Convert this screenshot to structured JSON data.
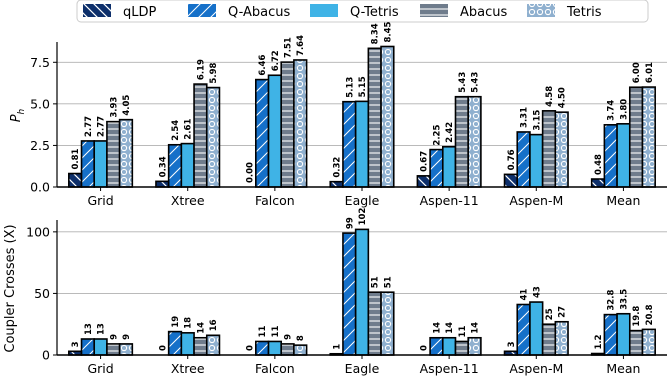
{
  "colors": {
    "qLDP": "#0d2f6b",
    "Q-Abacus": "#1570c9",
    "Q-Tetris": "#3fb3e6",
    "Abacus": "#6f7c8c",
    "Tetris": "#8fb0cf"
  },
  "legend": {
    "items": [
      {
        "name": "qLDP",
        "pattern": "backslash"
      },
      {
        "name": "Q-Abacus",
        "pattern": "slash"
      },
      {
        "name": "Q-Tetris",
        "pattern": "none"
      },
      {
        "name": "Abacus",
        "pattern": "hlines"
      },
      {
        "name": "Tetris",
        "pattern": "circles"
      }
    ]
  },
  "chart_data": [
    {
      "type": "bar",
      "categories": [
        "Grid",
        "Xtree",
        "Falcon",
        "Eagle",
        "Aspen-11",
        "Aspen-M",
        "Mean"
      ],
      "ylabel": "P_h",
      "ylim": [
        0,
        8.6
      ],
      "yticks": [
        "0.0",
        "2.5",
        "5.0",
        "7.5"
      ],
      "ytick_values": [
        0,
        2.5,
        5,
        7.5
      ],
      "grid": "horizontal",
      "series": [
        {
          "name": "qLDP",
          "values": [
            0.81,
            0.34,
            0.0,
            0.32,
            0.67,
            0.76,
            0.48
          ],
          "labels": [
            "0.81",
            "0.34",
            "0.00",
            "0.32",
            "0.67",
            "0.76",
            "0.48"
          ]
        },
        {
          "name": "Q-Abacus",
          "values": [
            2.77,
            2.54,
            6.46,
            5.13,
            2.25,
            3.31,
            3.74
          ],
          "labels": [
            "2.77",
            "2.54",
            "6.46",
            "5.13",
            "2.25",
            "3.31",
            "3.74"
          ]
        },
        {
          "name": "Q-Tetris",
          "values": [
            2.77,
            2.61,
            6.72,
            5.15,
            2.42,
            3.15,
            3.8
          ],
          "labels": [
            "2.77",
            "2.61",
            "6.72",
            "5.15",
            "2.42",
            "3.15",
            "3.80"
          ]
        },
        {
          "name": "Abacus",
          "values": [
            3.93,
            6.19,
            7.51,
            8.34,
            5.43,
            4.58,
            6.0
          ],
          "labels": [
            "3.93",
            "6.19",
            "7.51",
            "8.34",
            "5.43",
            "4.58",
            "6.00"
          ]
        },
        {
          "name": "Tetris",
          "values": [
            4.05,
            5.98,
            7.64,
            8.45,
            5.43,
            4.5,
            6.01
          ],
          "labels": [
            "4.05",
            "5.98",
            "7.64",
            "8.45",
            "5.43",
            "4.50",
            "6.01"
          ]
        }
      ]
    },
    {
      "type": "bar",
      "categories": [
        "Grid",
        "Xtree",
        "Falcon",
        "Eagle",
        "Aspen-11",
        "Aspen-M",
        "Mean"
      ],
      "ylabel": "Coupler Crosses (X)",
      "ylim": [
        0,
        108
      ],
      "yticks": [
        "0",
        "50",
        "100"
      ],
      "ytick_values": [
        0,
        50,
        100
      ],
      "grid": "horizontal",
      "series": [
        {
          "name": "qLDP",
          "values": [
            3,
            0,
            0,
            1,
            0,
            3,
            1.2
          ],
          "labels": [
            "3",
            "0",
            "0",
            "1",
            "0",
            "3",
            "1.2"
          ]
        },
        {
          "name": "Q-Abacus",
          "values": [
            13,
            19,
            11,
            99,
            14,
            41,
            32.8
          ],
          "labels": [
            "13",
            "19",
            "11",
            "99",
            "14",
            "41",
            "32.8"
          ]
        },
        {
          "name": "Q-Tetris",
          "values": [
            13,
            18,
            11,
            102,
            14,
            43,
            33.5
          ],
          "labels": [
            "13",
            "18",
            "11",
            "102",
            "14",
            "43",
            "33.5"
          ]
        },
        {
          "name": "Abacus",
          "values": [
            9,
            14,
            9,
            51,
            11,
            25,
            19.8
          ],
          "labels": [
            "9",
            "14",
            "9",
            "51",
            "11",
            "25",
            "19.8"
          ]
        },
        {
          "name": "Tetris",
          "values": [
            9,
            16,
            8,
            51,
            14,
            27,
            20.8
          ],
          "labels": [
            "9",
            "16",
            "8",
            "51",
            "14",
            "27",
            "20.8"
          ]
        }
      ]
    }
  ]
}
